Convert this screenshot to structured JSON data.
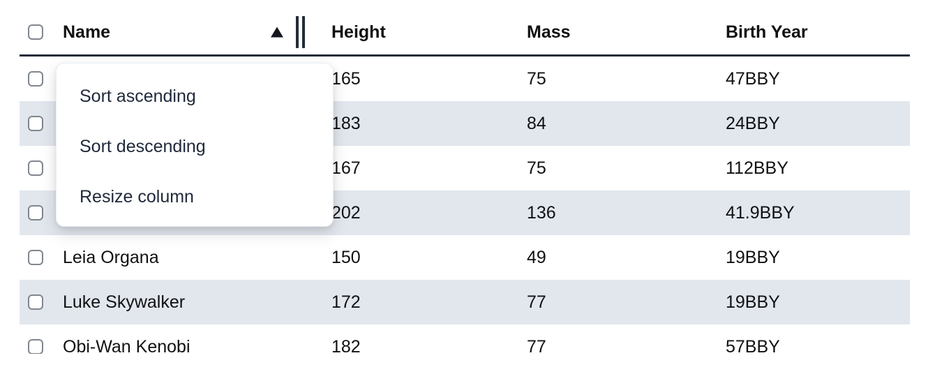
{
  "colors": {
    "stripe": "#e2e7ee",
    "header_border": "#222b3a",
    "text": "#101113",
    "menu_text": "#212a3b",
    "checkbox_border": "#80868e"
  },
  "table": {
    "columns": [
      {
        "label": "Name",
        "sort": "ascending"
      },
      {
        "label": "Height"
      },
      {
        "label": "Mass"
      },
      {
        "label": "Birth Year"
      }
    ],
    "rows": [
      {
        "name": "",
        "height": "165",
        "mass": "75",
        "birth_year": "47BBY"
      },
      {
        "name": "",
        "height": "183",
        "mass": "84",
        "birth_year": "24BBY"
      },
      {
        "name": "",
        "height": "167",
        "mass": "75",
        "birth_year": "112BBY"
      },
      {
        "name": "",
        "height": "202",
        "mass": "136",
        "birth_year": "41.9BBY"
      },
      {
        "name": "Leia Organa",
        "height": "150",
        "mass": "49",
        "birth_year": "19BBY"
      },
      {
        "name": "Luke Skywalker",
        "height": "172",
        "mass": "77",
        "birth_year": "19BBY"
      },
      {
        "name": "Obi-Wan Kenobi",
        "height": "182",
        "mass": "77",
        "birth_year": "57BBY"
      }
    ]
  },
  "column_menu": {
    "items": [
      {
        "label": "Sort ascending"
      },
      {
        "label": "Sort descending"
      },
      {
        "label": "Resize column"
      }
    ]
  }
}
